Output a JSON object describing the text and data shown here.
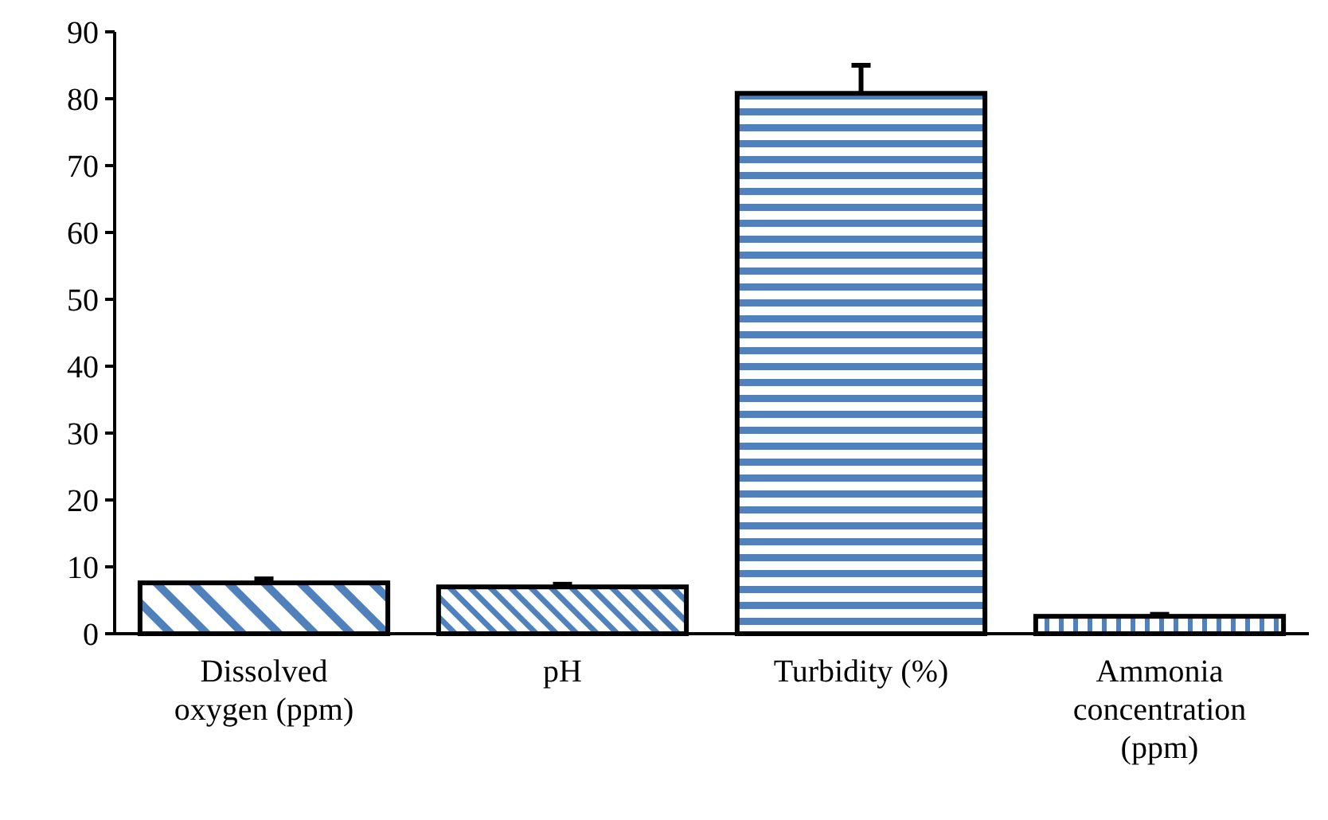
{
  "chart_data": {
    "type": "bar",
    "categories": [
      "Dissolved oxygen (ppm)",
      "pH",
      "Turbidity (%)",
      "Ammonia concentration (ppm)"
    ],
    "values": [
      7.6,
      7.0,
      80.8,
      2.6
    ],
    "errors": [
      0.6,
      0.4,
      4.2,
      0.3
    ],
    "color": "#4f81bd",
    "ylim": [
      0,
      90
    ],
    "yticks": [
      0,
      10,
      20,
      30,
      40,
      50,
      60,
      70,
      80,
      90
    ],
    "grid": false
  }
}
